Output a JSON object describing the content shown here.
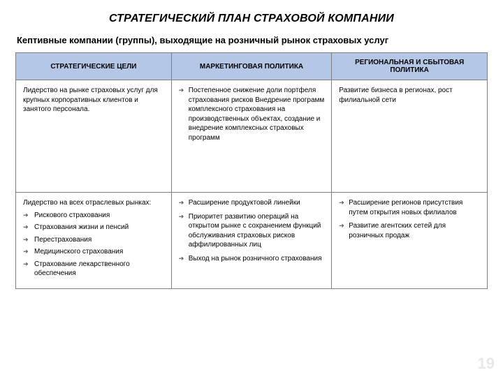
{
  "title": "СТРАТЕГИЧЕСКИЙ ПЛАН СТРАХОВОЙ КОМПАНИИ",
  "subtitle": "Кептивные компании (группы), выходящие на розничный рынок страховых услуг",
  "page_number": "19",
  "colors": {
    "header_bg": "#b4c7e7",
    "border": "#7f7f7f",
    "text": "#000000",
    "background": "#ffffff",
    "pagenum": "#e8e8e8"
  },
  "table": {
    "headers": {
      "col1": "СТРАТЕГИЧЕСКИЕ ЦЕЛИ",
      "col2": "МАРКЕТИНГОВАЯ ПОЛИТИКА",
      "col3": "РЕГИОНАЛЬНАЯ И СБЫТОВАЯ ПОЛИТИКА"
    },
    "row1": {
      "goals_text": "Лидерство на рынке страховых услуг для крупных корпоративных клиентов и занятого персонала.",
      "marketing_item1": "Постепенное снижение доли портфеля страхования рисков Внедрение программ комплексного страхования на производственных объектах, создание и внедрение комплексных страховых программ",
      "regional_text": "Развитие бизнеса в регионах, рост филиальной сети"
    },
    "row2": {
      "goals_lead": "Лидерство на всех отраслевых рынках:",
      "goals_item1": "Рискового страхования",
      "goals_item2": "Страхования жизни и пенсий",
      "goals_item3": "Перестрахования",
      "goals_item4": "Медицинского страхования",
      "goals_item5": "Страхование лекарственного обеспечения",
      "marketing_item1": "Расширение продуктовой линейки",
      "marketing_item2": "Приоритет развитию операций на открытом рынке с сохранением функций обслуживания страховых рисков аффилированных лиц",
      "marketing_item3": "Выход на рынок розничного страхования",
      "regional_item1": "Расширение регионов присутствия путем открытия новых филиалов",
      "regional_item2": "Развитие агентских сетей для розничных продаж"
    }
  }
}
